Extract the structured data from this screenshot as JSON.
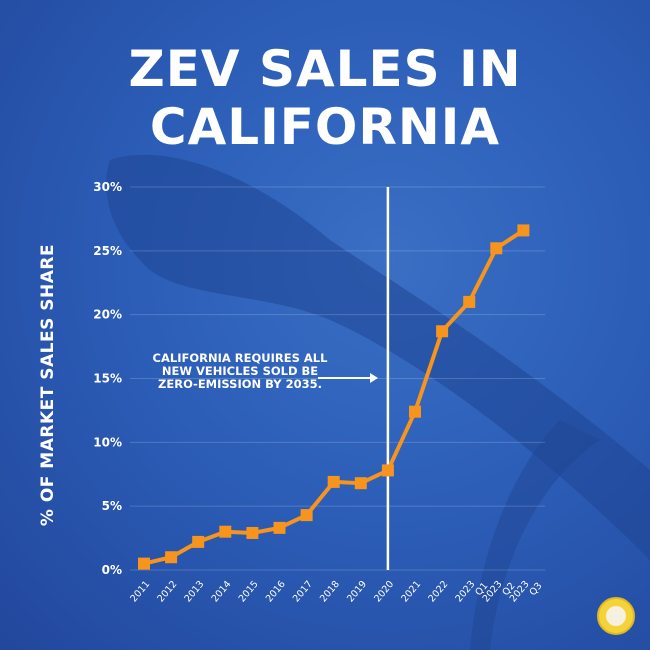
{
  "title_line1": "ZEV SALES IN",
  "title_line2": "CALIFORNIA",
  "annotation": "CALIFORNIA REQUIRES ALL NEW VEHICLES SOLD BE ZERO-EMISSION BY 2035.",
  "chart_data": {
    "type": "line",
    "title": "ZEV SALES IN CALIFORNIA",
    "xlabel": "",
    "ylabel": "% OF MARKET SALES SHARE",
    "ylim": [
      0,
      30
    ],
    "yticks": [
      "0%",
      "5%",
      "10%",
      "15%",
      "20%",
      "25%",
      "30%"
    ],
    "categories": [
      "2011",
      "2012",
      "2013",
      "2014",
      "2015",
      "2016",
      "2017",
      "2018",
      "2019",
      "2020",
      "2021",
      "2022",
      "2023 Q1",
      "2023 Q2",
      "2023 Q3"
    ],
    "values": [
      0.5,
      1.0,
      2.2,
      3.0,
      2.9,
      3.3,
      4.3,
      6.9,
      6.8,
      7.8,
      12.4,
      18.7,
      21.0,
      25.2,
      26.6
    ],
    "marker_category": "2020",
    "grid": true,
    "line_color": "#f7941d"
  },
  "colors": {
    "background": "#2c5eb8",
    "line": "#f7941d",
    "text": "#ffffff"
  }
}
